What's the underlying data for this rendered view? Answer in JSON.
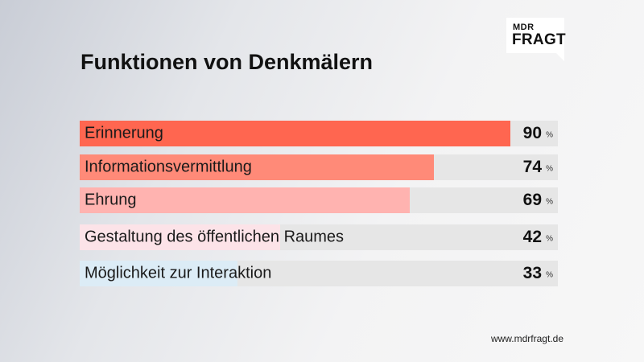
{
  "brand": {
    "logo_top": "MDR",
    "logo_bottom": "FRAGT"
  },
  "footer": {
    "url": "www.mdrfragt.de"
  },
  "colors": [
    "#ff6650",
    "#ff8a78",
    "#ffb3b0",
    "#fce3e8",
    "#dcecf6"
  ],
  "chart_data": {
    "type": "bar",
    "orientation": "horizontal",
    "title": "Funktionen von Denkmälern",
    "categories": [
      "Erinnerung",
      "Informationsvermittlung",
      "Ehrung",
      "Gestaltung des öffentlichen Raumes",
      "Möglichkeit zur Interaktion"
    ],
    "values": [
      90,
      74,
      69,
      42,
      33
    ],
    "value_labels": [
      "90",
      "74",
      "69",
      "42",
      "33"
    ],
    "unit": "%",
    "xlim": [
      0,
      100
    ],
    "grid": false
  }
}
